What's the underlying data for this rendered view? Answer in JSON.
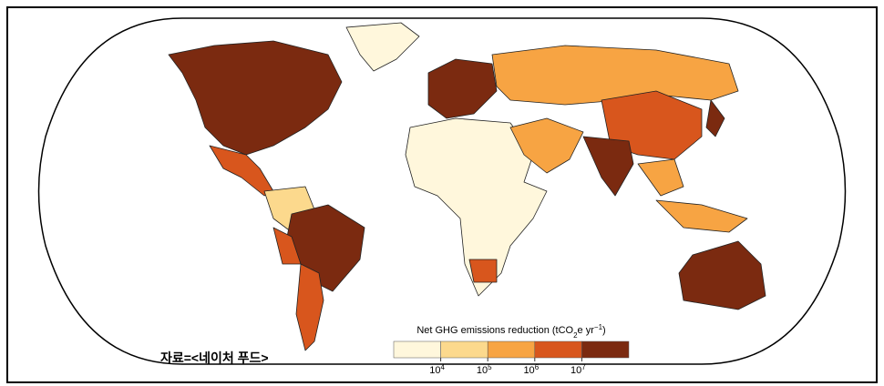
{
  "legend": {
    "title": "Net GHG emissions reduction (tCO",
    "title_sub": "2",
    "title_mid": "e yr",
    "title_sup": "−1",
    "title_end": ")",
    "colors": [
      "#fff7dc",
      "#fcd98d",
      "#f7a443",
      "#d8561d",
      "#7b2a10"
    ],
    "ticks": [
      {
        "base": "10",
        "exp": "4"
      },
      {
        "base": "10",
        "exp": "5"
      },
      {
        "base": "10",
        "exp": "6"
      },
      {
        "base": "10",
        "exp": "7"
      }
    ]
  },
  "source": "자료=<네이처 푸드>"
}
